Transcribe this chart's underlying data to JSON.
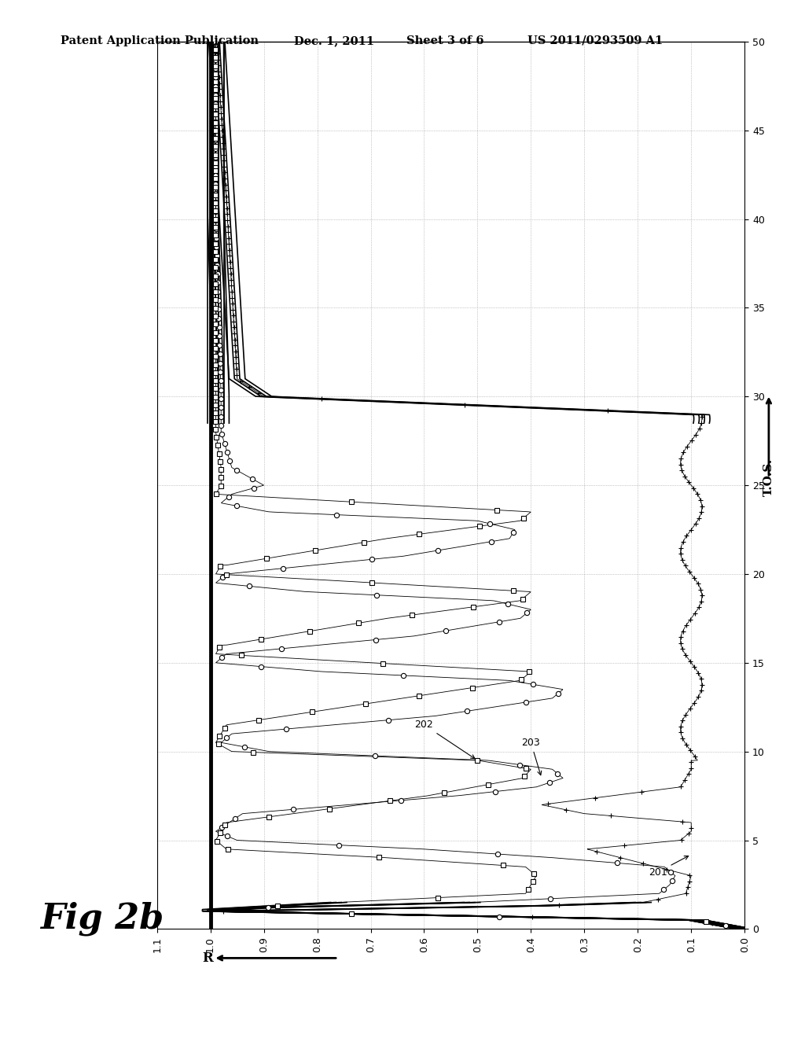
{
  "title_header": "Patent Application Publication",
  "title_date": "Dec. 1, 2011",
  "title_sheet": "Sheet 3 of 6",
  "title_patent": "US 2011/0293509 A1",
  "fig_label": "Fig 2b",
  "x_label": "T.O.S.",
  "y_label": "R",
  "tos_min": 0,
  "tos_max": 50,
  "r_min": 0.0,
  "r_max": 1.1,
  "r_ticks": [
    0.0,
    0.1,
    0.2,
    0.3,
    0.4,
    0.5,
    0.6,
    0.7,
    0.8,
    0.9,
    1.0,
    1.1
  ],
  "tos_ticks": [
    0,
    5,
    10,
    15,
    20,
    25,
    30,
    35,
    40,
    45,
    50
  ],
  "background_color": "#ffffff"
}
